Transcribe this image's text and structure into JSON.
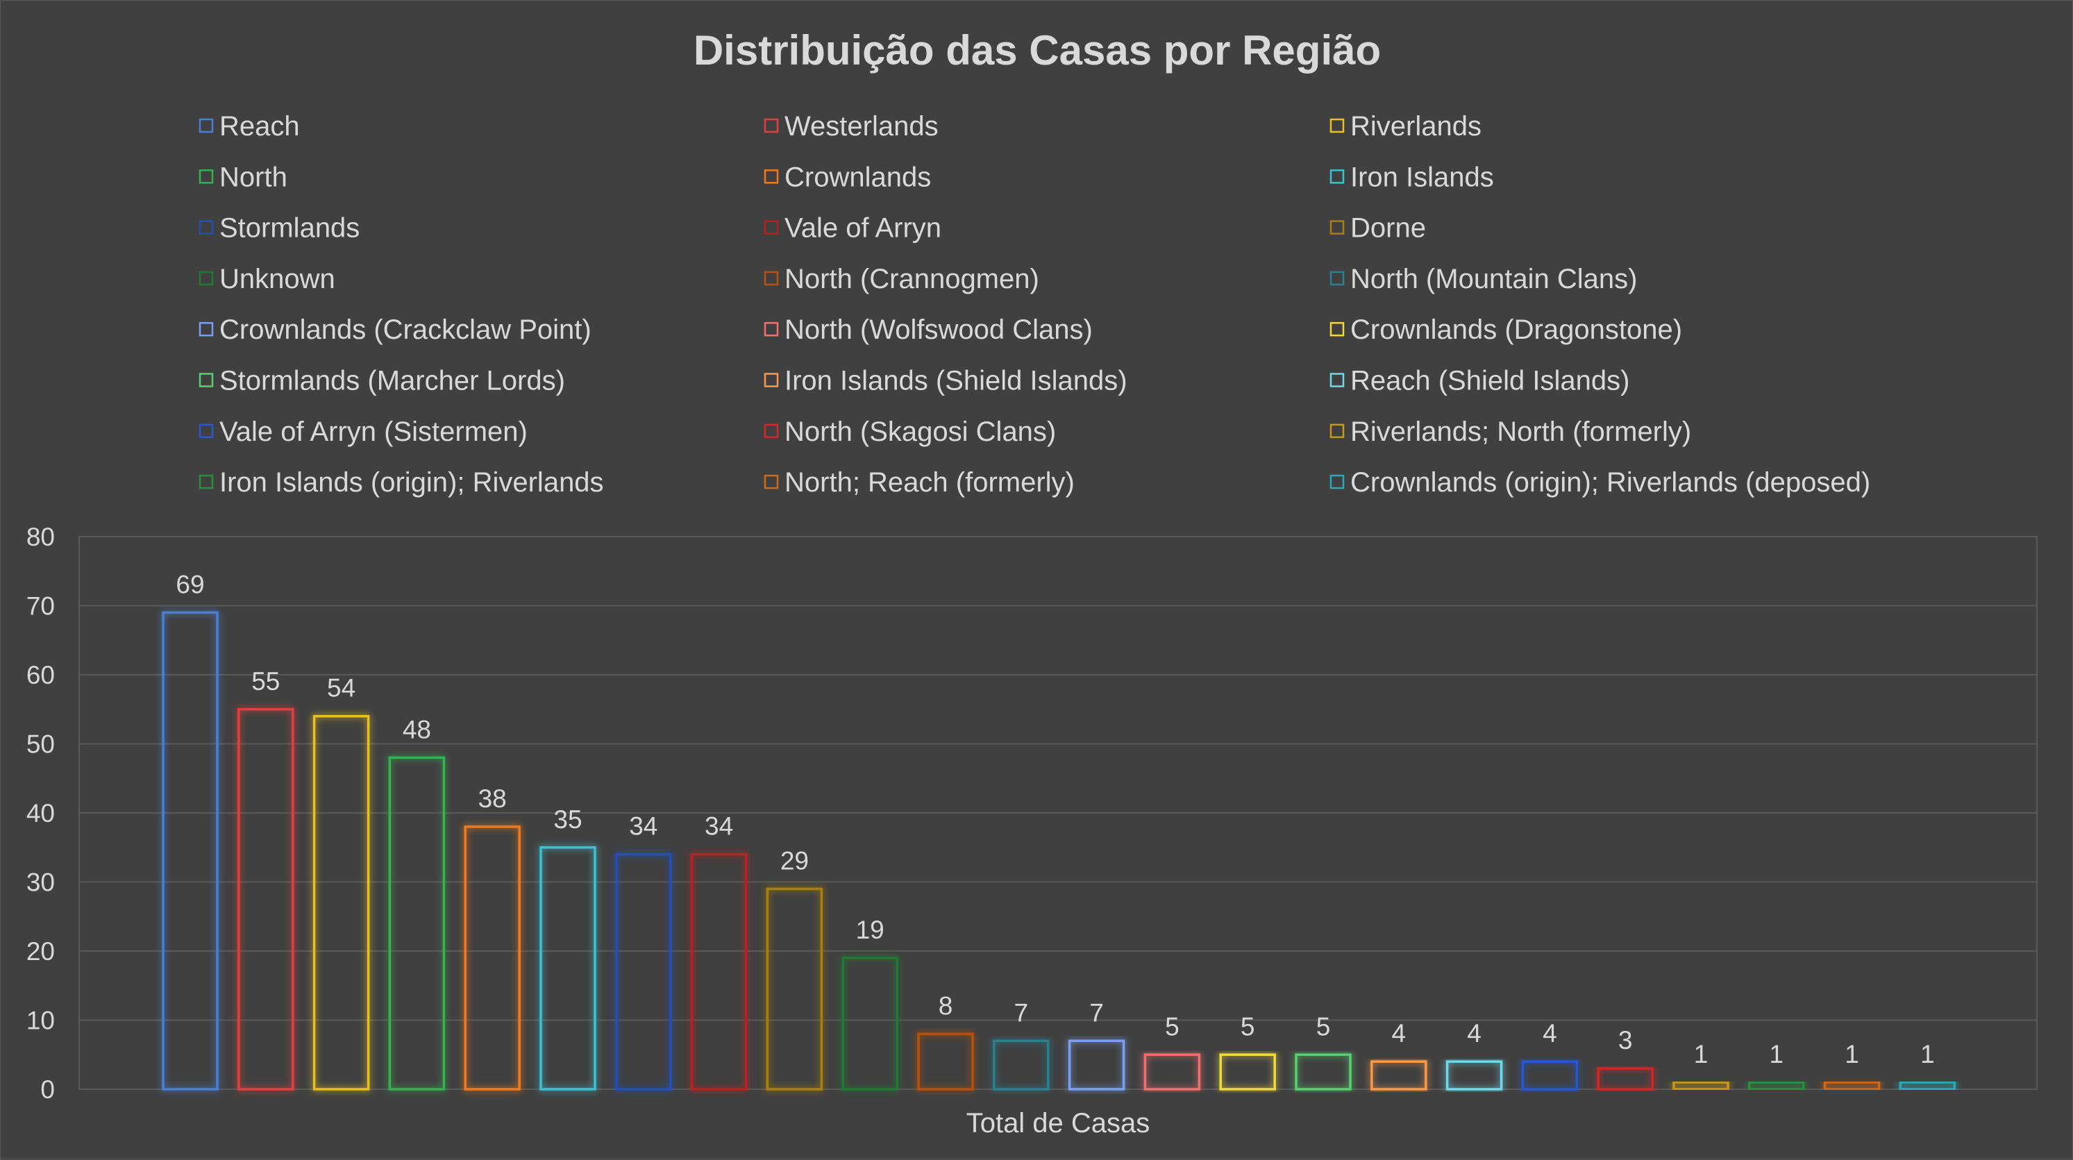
{
  "chart_data": {
    "type": "bar",
    "title": "Distribuição das Casas por Região",
    "xlabel": "Total de Casas",
    "ylabel": "",
    "ylim": [
      0,
      80
    ],
    "yticks": [
      0,
      10,
      20,
      30,
      40,
      50,
      60,
      70,
      80
    ],
    "grid": true,
    "legend_position": "top",
    "categories": [
      "Total de Casas"
    ],
    "series": [
      {
        "name": "Reach",
        "values": [
          69
        ],
        "color": "#4a7fd4"
      },
      {
        "name": "Westerlands",
        "values": [
          55
        ],
        "color": "#e04040"
      },
      {
        "name": "Riverlands",
        "values": [
          54
        ],
        "color": "#e8c020"
      },
      {
        "name": "North",
        "values": [
          48
        ],
        "color": "#38b050"
      },
      {
        "name": "Crownlands",
        "values": [
          38
        ],
        "color": "#f07a1a"
      },
      {
        "name": "Iron Islands",
        "values": [
          35
        ],
        "color": "#3cc0d0"
      },
      {
        "name": "Stormlands",
        "values": [
          34
        ],
        "color": "#2050b8"
      },
      {
        "name": "Vale of Arryn",
        "values": [
          34
        ],
        "color": "#b82020"
      },
      {
        "name": "Dorne",
        "values": [
          29
        ],
        "color": "#a88010"
      },
      {
        "name": "Unknown",
        "values": [
          19
        ],
        "color": "#207a30"
      },
      {
        "name": "North (Crannogmen)",
        "values": [
          8
        ],
        "color": "#b85010"
      },
      {
        "name": "North (Mountain Clans)",
        "values": [
          7
        ],
        "color": "#2a8090"
      },
      {
        "name": "Crownlands (Crackclaw Point)",
        "values": [
          7
        ],
        "color": "#7aa0f0"
      },
      {
        "name": "North (Wolfswood Clans)",
        "values": [
          5
        ],
        "color": "#f07070"
      },
      {
        "name": "Crownlands (Dragonstone)",
        "values": [
          5
        ],
        "color": "#f0d840"
      },
      {
        "name": "Stormlands (Marcher Lords)",
        "values": [
          5
        ],
        "color": "#58d070"
      },
      {
        "name": "Iron Islands (Shield Islands)",
        "values": [
          4
        ],
        "color": "#f89a48"
      },
      {
        "name": "Reach (Shield Islands)",
        "values": [
          4
        ],
        "color": "#70d8e8"
      },
      {
        "name": "Vale of Arryn (Sistermen)",
        "values": [
          4
        ],
        "color": "#2858d0"
      },
      {
        "name": "North (Skagosi Clans)",
        "values": [
          3
        ],
        "color": "#d02828"
      },
      {
        "name": "Riverlands; North (formerly)",
        "values": [
          1
        ],
        "color": "#c89818"
      },
      {
        "name": "Iron Islands (origin); Riverlands",
        "values": [
          1
        ],
        "color": "#28903a"
      },
      {
        "name": "North; Reach (formerly)",
        "values": [
          1
        ],
        "color": "#d06818"
      },
      {
        "name": "Crownlands (origin); Riverlands (deposed)",
        "values": [
          1
        ],
        "color": "#2aa8b8"
      }
    ]
  }
}
